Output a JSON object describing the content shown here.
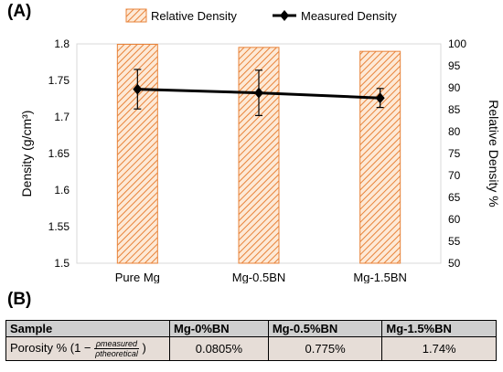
{
  "panels": {
    "a": "(A)",
    "b": "(B)"
  },
  "chart_data": {
    "type": "bar",
    "categories": [
      "Pure Mg",
      "Mg-0.5BN",
      "Mg-1.5BN"
    ],
    "series": [
      {
        "name": "Relative Density",
        "type": "bar",
        "axis": "right",
        "values": [
          99.9,
          99.2,
          98.3
        ],
        "color": "#e8833a"
      },
      {
        "name": "Measured Density",
        "type": "line",
        "axis": "left",
        "values": [
          1.738,
          1.733,
          1.726
        ],
        "error": [
          0.027,
          0.031,
          0.013
        ],
        "color": "#000000"
      }
    ],
    "ylabel": "Density (g/cm³)",
    "ylim": [
      1.5,
      1.8
    ],
    "yticks": [
      "1.5",
      "1.55",
      "1.6",
      "1.65",
      "1.7",
      "1.75",
      "1.8"
    ],
    "y2label": "Relative Density %",
    "y2lim": [
      50,
      100
    ],
    "y2ticks": [
      "50",
      "55",
      "60",
      "65",
      "70",
      "75",
      "80",
      "85",
      "90",
      "95",
      "100"
    ],
    "legend": "top",
    "grid": false
  },
  "table": {
    "headers": [
      "Sample",
      "Mg-0%BN",
      "Mg-0.5%BN",
      "Mg-1.5%BN"
    ],
    "row_label_prefix": "Porosity % (1 −",
    "frac_num": "ρmeasured",
    "frac_den": "ρtheoretical",
    "row_label_suffix": ")",
    "values": [
      "0.0805%",
      "0.775%",
      "1.74%"
    ]
  }
}
